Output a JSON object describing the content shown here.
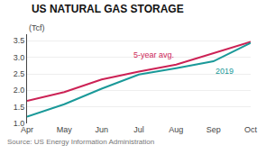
{
  "chart_data": {
    "type": "line",
    "title": "US NATURAL GAS STORAGE",
    "ylabel": "(Tcf)",
    "source": "Source: US Energy Information Administration",
    "categories": [
      "Apr",
      "May",
      "Jun",
      "Jul",
      "Aug",
      "Sep",
      "Oct"
    ],
    "series": [
      {
        "name": "5-year avg.",
        "color": "#cc2255",
        "values": [
          1.68,
          1.95,
          2.33,
          2.57,
          2.78,
          3.12,
          3.47
        ]
      },
      {
        "name": "2019",
        "color": "#1a9999",
        "values": [
          1.2,
          1.58,
          2.05,
          2.48,
          2.67,
          2.88,
          3.44
        ]
      }
    ],
    "ylim": [
      1.0,
      3.7
    ],
    "yticks": [
      {
        "value": 1.0,
        "label": "1.0"
      },
      1.5,
      {
        "value": 2.0,
        "label": "2.0"
      },
      2.5,
      {
        "value": 3.0,
        "label": "3.0"
      },
      3.5
    ],
    "grid": true
  }
}
